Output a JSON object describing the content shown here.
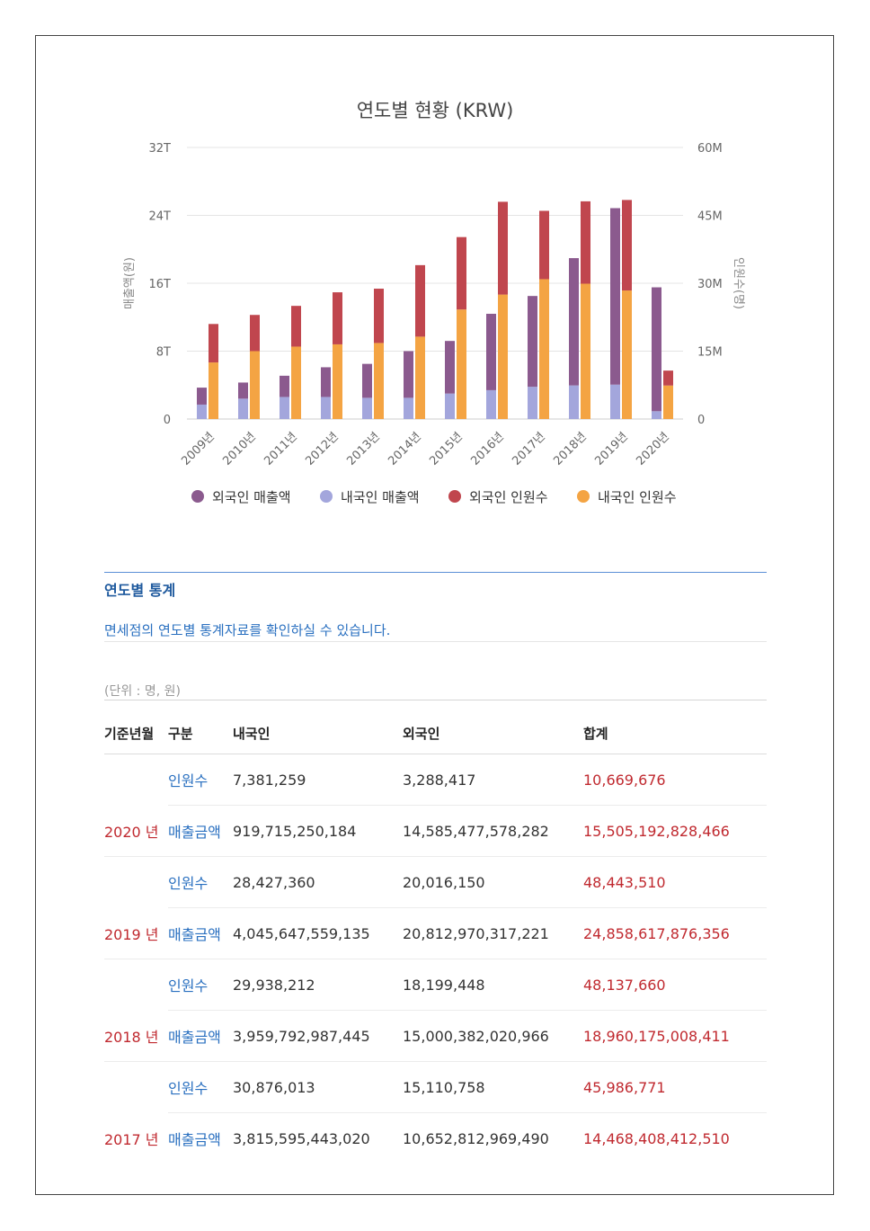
{
  "chart_data": {
    "type": "bar",
    "title": "연도별 현황 (KRW)",
    "categories": [
      "2009년",
      "2010년",
      "2011년",
      "2012년",
      "2013년",
      "2014년",
      "2015년",
      "2016년",
      "2017년",
      "2018년",
      "2019년",
      "2020년"
    ],
    "ylabel_left": "매출액(원)",
    "ylabel_right": "인원수(명)",
    "yticks_left": [
      "0",
      "8T",
      "16T",
      "24T",
      "32T"
    ],
    "yticks_right": [
      "0",
      "15M",
      "30M",
      "45M",
      "60M"
    ],
    "ylim_left": [
      0,
      32
    ],
    "ylim_right": [
      0,
      60
    ],
    "grid": true,
    "legend_position": "bottom",
    "sales_stack": {
      "axis": "left",
      "unit": "T",
      "series": [
        {
          "name": "외국인 매출액",
          "color": "#8b5a8e",
          "values": [
            2.0,
            1.9,
            2.5,
            3.5,
            4.0,
            5.5,
            6.2,
            9.0,
            10.7,
            15.0,
            20.8,
            14.6
          ]
        },
        {
          "name": "내국인 매출액",
          "color": "#a3a6dc",
          "values": [
            1.7,
            2.4,
            2.6,
            2.6,
            2.5,
            2.5,
            3.0,
            3.4,
            3.8,
            3.96,
            4.05,
            0.92
          ]
        }
      ]
    },
    "people_stack": {
      "axis": "right",
      "unit": "M",
      "series": [
        {
          "name": "외국인 인원수",
          "color": "#c0464e",
          "values": [
            8.5,
            8.0,
            9.0,
            11.5,
            12.0,
            15.8,
            16.0,
            20.5,
            15.1,
            18.2,
            20.0,
            3.3
          ]
        },
        {
          "name": "내국인 인원수",
          "color": "#f4a443",
          "values": [
            12.5,
            15.0,
            16.0,
            16.5,
            16.8,
            18.2,
            24.2,
            27.5,
            30.9,
            29.9,
            28.4,
            7.4
          ]
        }
      ]
    }
  },
  "section": {
    "title": "연도별 통계",
    "description": "면세점의 연도별 통계자료를 확인하실 수 있습니다.",
    "unit_note": "(단위 : 명, 원)"
  },
  "table": {
    "headers": [
      "기준년월",
      "구분",
      "내국인",
      "외국인",
      "합계"
    ],
    "years": [
      {
        "year": "2020 년",
        "people": {
          "label": "인원수",
          "domestic": "7,381,259",
          "foreign": "3,288,417",
          "total": "10,669,676"
        },
        "sales": {
          "label": "매출금액",
          "domestic": "919,715,250,184",
          "foreign": "14,585,477,578,282",
          "total": "15,505,192,828,466"
        }
      },
      {
        "year": "2019 년",
        "people": {
          "label": "인원수",
          "domestic": "28,427,360",
          "foreign": "20,016,150",
          "total": "48,443,510"
        },
        "sales": {
          "label": "매출금액",
          "domestic": "4,045,647,559,135",
          "foreign": "20,812,970,317,221",
          "total": "24,858,617,876,356"
        }
      },
      {
        "year": "2018 년",
        "people": {
          "label": "인원수",
          "domestic": "29,938,212",
          "foreign": "18,199,448",
          "total": "48,137,660"
        },
        "sales": {
          "label": "매출금액",
          "domestic": "3,959,792,987,445",
          "foreign": "15,000,382,020,966",
          "total": "18,960,175,008,411"
        }
      },
      {
        "year": "2017 년",
        "people": {
          "label": "인원수",
          "domestic": "30,876,013",
          "foreign": "15,110,758",
          "total": "45,986,771"
        },
        "sales": {
          "label": "매출금액",
          "domestic": "3,815,595,443,020",
          "foreign": "10,652,812,969,490",
          "total": "14,468,408,412,510"
        }
      }
    ]
  }
}
